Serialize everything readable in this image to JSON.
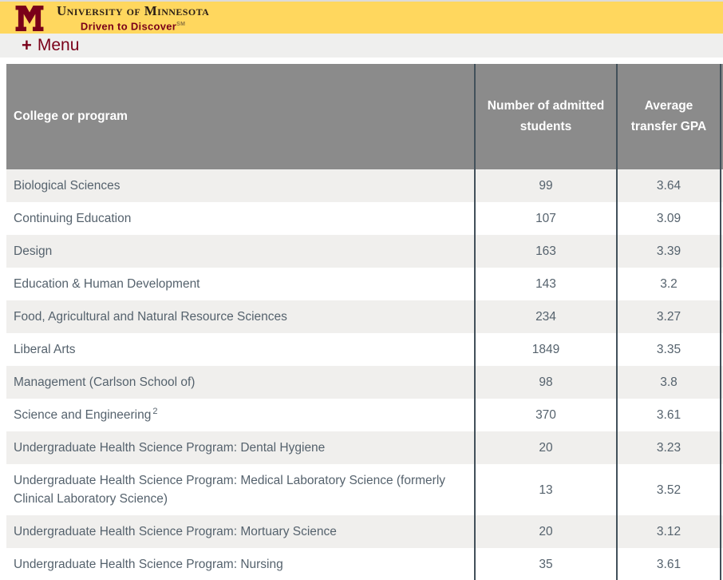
{
  "banner": {
    "university_name": "University of Minnesota",
    "tagline": "Driven to Discover",
    "tagline_mark": "SM"
  },
  "menu": {
    "plus": "+",
    "label": "Menu"
  },
  "table": {
    "headers": {
      "college": "College or program",
      "admitted": "Number of admitted students",
      "gpa": "Average transfer GPA"
    },
    "rows": [
      {
        "college": "Biological Sciences",
        "admitted": "99",
        "gpa": "3.64"
      },
      {
        "college": "Continuing Education",
        "admitted": "107",
        "gpa": "3.09"
      },
      {
        "college": "Design",
        "admitted": "163",
        "gpa": "3.39"
      },
      {
        "college": "Education & Human Development",
        "admitted": "143",
        "gpa": "3.2"
      },
      {
        "college": "Food, Agricultural and Natural Resource Sciences",
        "admitted": "234",
        "gpa": "3.27"
      },
      {
        "college": "Liberal Arts",
        "admitted": "1849",
        "gpa": "3.35"
      },
      {
        "college": "Management (Carlson School of)",
        "admitted": "98",
        "gpa": "3.8"
      },
      {
        "college": "Science and Engineering",
        "footnote": "2",
        "admitted": "370",
        "gpa": "3.61"
      },
      {
        "college": "Undergraduate Health Science Program: Dental Hygiene",
        "admitted": "20",
        "gpa": "3.23"
      },
      {
        "college": "Undergraduate Health Science Program: Medical Laboratory Science (formerly Clinical Laboratory Science)",
        "admitted": "13",
        "gpa": "3.52"
      },
      {
        "college": "Undergraduate Health Science Program: Mortuary Science",
        "admitted": "20",
        "gpa": "3.12"
      },
      {
        "college": "Undergraduate Health Science Program: Nursing",
        "admitted": "35",
        "gpa": "3.61"
      }
    ]
  },
  "colors": {
    "gold": "#ffd75e",
    "maroon": "#7a0019",
    "header_gray": "#8b8b8b",
    "row_alt": "#f0efed",
    "body_text": "#55626d",
    "column_line": "#42505a"
  }
}
